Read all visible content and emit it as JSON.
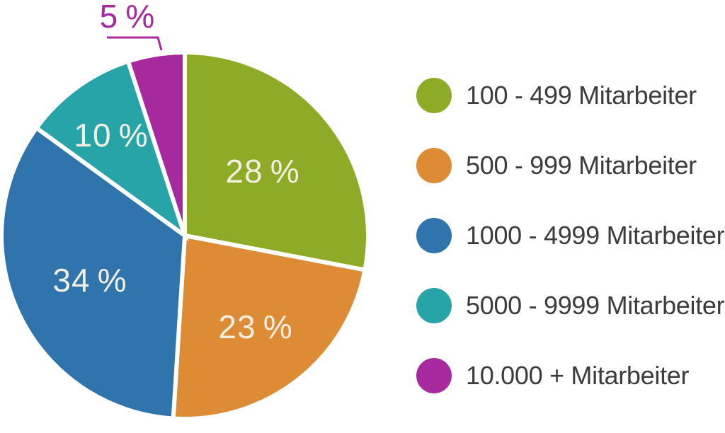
{
  "chart_data": {
    "type": "pie",
    "categories": [
      "100 - 499 Mitarbeiter",
      "500 - 999 Mitarbeiter",
      "1000 - 4999 Mitarbeiter",
      "5000 - 9999 Mitarbeiter",
      "10.000 + Mitarbeiter"
    ],
    "values": [
      28,
      23,
      34,
      10,
      5
    ],
    "slice_labels": [
      "28 %",
      "23 %",
      "34 %",
      "10 %",
      "5 %"
    ],
    "colors": [
      "#8DAB26",
      "#DD8C35",
      "#2F74AC",
      "#26A4A8",
      "#A62A9E"
    ],
    "start_angle_deg": 0,
    "direction": "clockwise",
    "legend_position": "right",
    "outside_label_index": 4,
    "slice_label_color": "#F2EEE2",
    "legend_text_color": "#3C3C3C",
    "separator_color": "#FFFFFF",
    "background_color": "#FFFFFF"
  }
}
